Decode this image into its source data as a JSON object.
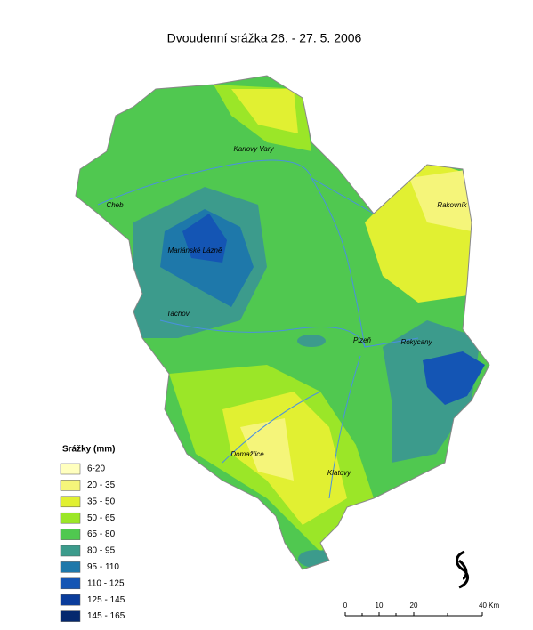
{
  "title": "Dvoudenní srážka 26. - 27. 5. 2006",
  "legend": {
    "title": "Srážky (mm)",
    "items": [
      {
        "label": "6-20",
        "color": "#ffffbe"
      },
      {
        "label": "20 - 35",
        "color": "#f5f57a"
      },
      {
        "label": "35 - 50",
        "color": "#e1f032"
      },
      {
        "label": "50 - 65",
        "color": "#9be628"
      },
      {
        "label": "65 - 80",
        "color": "#50c850"
      },
      {
        "label": "80 - 95",
        "color": "#3c9b8c"
      },
      {
        "label": "95 - 110",
        "color": "#1e78aa"
      },
      {
        "label": "110 - 125",
        "color": "#1455b4"
      },
      {
        "label": "125 - 145",
        "color": "#0a3c9b"
      },
      {
        "label": "145 - 165",
        "color": "#05286e"
      }
    ]
  },
  "cities": [
    "Karlovy Vary",
    "Cheb",
    "Rakovník",
    "Mariánské Lázně",
    "Tachov",
    "Plzeň",
    "Rokycany",
    "Domažlice",
    "Klatovy"
  ],
  "scale_bar": {
    "labels": [
      "0",
      "10",
      "20",
      "40 Km"
    ]
  }
}
